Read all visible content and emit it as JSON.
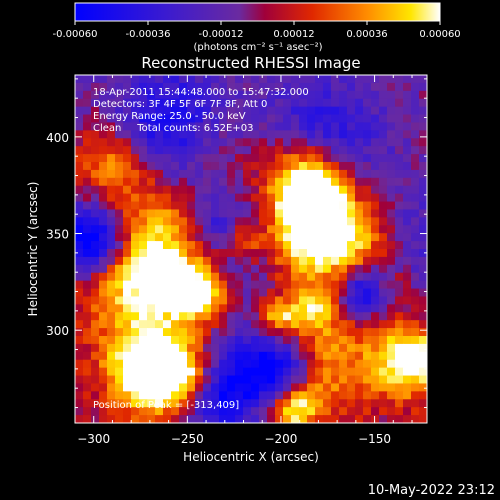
{
  "colorbar": {
    "tick_labels": [
      "-0.00060",
      "-0.00036",
      "-0.00012",
      "0.00012",
      "0.00036",
      "0.00060"
    ],
    "tick_values": [
      -0.0006,
      -0.00036,
      -0.00012,
      0.00012,
      0.00036,
      0.0006
    ],
    "range": [
      -0.0006,
      0.0006
    ],
    "units": "(photons cm⁻² s⁻¹ asec⁻²)"
  },
  "chart_data": {
    "type": "heatmap",
    "title": "Reconstructed RHESSI Image",
    "xlabel": "Heliocentric X (arcsec)",
    "ylabel": "Heliocentric Y (arcsec)",
    "xlim": [
      -310,
      -122
    ],
    "ylim": [
      252,
      432
    ],
    "xticks": [
      -300,
      -250,
      -200,
      -150
    ],
    "yticks": [
      300,
      350,
      400
    ],
    "xtick_labels": [
      "−300",
      "−250",
      "−200",
      "−150"
    ],
    "ytick_labels": [
      "300",
      "350",
      "400"
    ],
    "colorscale": "blue-purple-red-yellow-white",
    "annotations": [
      "18-Apr-2011 15:44:48.000 to 15:47:32.000",
      "Detectors: 3F 4F 5F 6F 7F 8F, Att 0",
      "Energy Range: 25.0 - 50.0 keV",
      "Clean     Total counts: 6.52E+03"
    ],
    "peak_label": "Position of Peak = [-313,409]",
    "peak": [
      -313,
      409
    ]
  },
  "footer": {
    "timestamp": "10-May-2022 23:12"
  }
}
